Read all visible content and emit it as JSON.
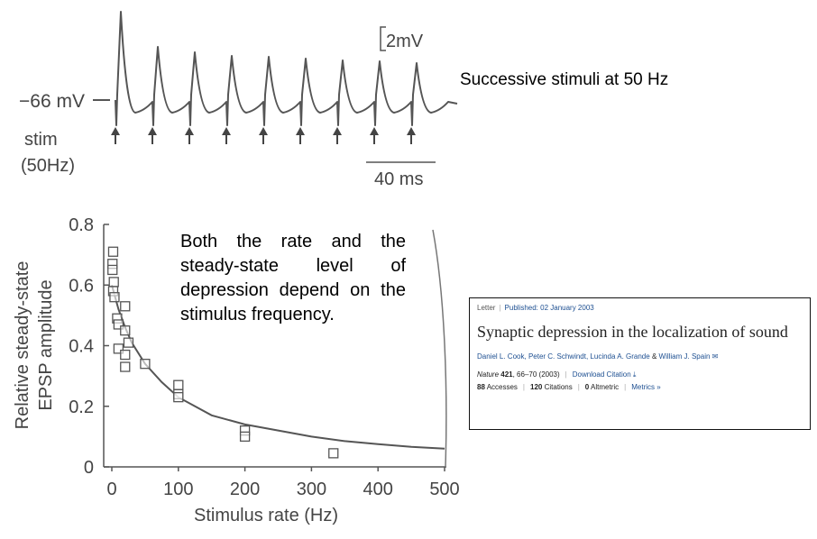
{
  "trace": {
    "scale_voltage": "2mV",
    "resting_label": "−66 mV",
    "stim_label_line1": "stim",
    "stim_label_line2": "(50Hz)",
    "scale_time": "40 ms",
    "stimulus_count": 9,
    "color": "#555555"
  },
  "caption_top": "Successive stimuli at 50 Hz",
  "caption_plot": "Both the rate and the steady-state level of depression depend on the stimulus frequency.",
  "paper": {
    "type": "Letter",
    "published": "Published: 02 January 2003",
    "title": "Synaptic depression in the localization of sound",
    "authors": [
      "Daniel L. Cook",
      "Peter C. Schwindt",
      "Lucinda A. Grande",
      "William J. Spain"
    ],
    "author_joiner": "&",
    "journal": "Nature",
    "volume": "421",
    "pages": ", 66–70 (2003)",
    "download": "Download Citation",
    "accesses_count": "88",
    "accesses_label": "Accesses",
    "citations_count": "120",
    "citations_label": "Citations",
    "altmetric_count": "0",
    "altmetric_label": "Altmetric",
    "metrics_link": "Metrics"
  },
  "chart_data": {
    "type": "scatter",
    "xlabel": "Stimulus rate (Hz)",
    "ylabel_line1": "Relative steady-state",
    "ylabel_line2": "EPSP amplitude",
    "xlim": [
      0,
      500
    ],
    "ylim": [
      0,
      0.8
    ],
    "xticks": [
      0,
      100,
      200,
      300,
      400,
      500
    ],
    "yticks": [
      0,
      0.2,
      0.4,
      0.6,
      0.8
    ],
    "grid": false,
    "color": "#555555",
    "points": [
      {
        "x": 2,
        "y": 0.71
      },
      {
        "x": 1,
        "y": 0.67
      },
      {
        "x": 1,
        "y": 0.65
      },
      {
        "x": 3,
        "y": 0.61
      },
      {
        "x": 2,
        "y": 0.58
      },
      {
        "x": 4,
        "y": 0.56
      },
      {
        "x": 8,
        "y": 0.49
      },
      {
        "x": 10,
        "y": 0.47
      },
      {
        "x": 20,
        "y": 0.53
      },
      {
        "x": 20,
        "y": 0.45
      },
      {
        "x": 25,
        "y": 0.41
      },
      {
        "x": 10,
        "y": 0.39
      },
      {
        "x": 20,
        "y": 0.37
      },
      {
        "x": 20,
        "y": 0.33
      },
      {
        "x": 50,
        "y": 0.34
      },
      {
        "x": 100,
        "y": 0.27
      },
      {
        "x": 100,
        "y": 0.24
      },
      {
        "x": 100,
        "y": 0.23
      },
      {
        "x": 200,
        "y": 0.12
      },
      {
        "x": 200,
        "y": 0.1
      },
      {
        "x": 333,
        "y": 0.045
      }
    ],
    "fit_curve": [
      {
        "x": 0,
        "y": 0.6
      },
      {
        "x": 10,
        "y": 0.52
      },
      {
        "x": 20,
        "y": 0.46
      },
      {
        "x": 30,
        "y": 0.41
      },
      {
        "x": 50,
        "y": 0.34
      },
      {
        "x": 75,
        "y": 0.28
      },
      {
        "x": 100,
        "y": 0.23
      },
      {
        "x": 150,
        "y": 0.17
      },
      {
        "x": 200,
        "y": 0.14
      },
      {
        "x": 250,
        "y": 0.12
      },
      {
        "x": 300,
        "y": 0.1
      },
      {
        "x": 350,
        "y": 0.085
      },
      {
        "x": 400,
        "y": 0.075
      },
      {
        "x": 450,
        "y": 0.066
      },
      {
        "x": 500,
        "y": 0.06
      }
    ]
  }
}
